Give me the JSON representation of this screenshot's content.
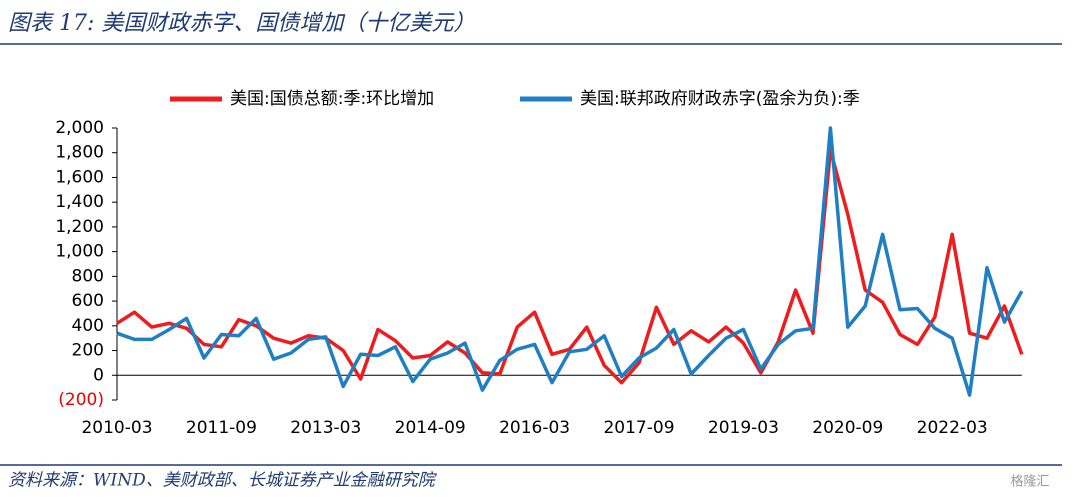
{
  "header": {
    "title": "图表 17:  美国财政赤字、国债增加（十亿美元）"
  },
  "chart_data": {
    "type": "line",
    "categories": [
      "2010-03",
      null,
      null,
      null,
      null,
      null,
      "2011-09",
      null,
      null,
      null,
      null,
      null,
      "2013-03",
      null,
      null,
      null,
      null,
      null,
      "2014-09",
      null,
      null,
      null,
      null,
      null,
      "2016-03",
      null,
      null,
      null,
      null,
      null,
      "2017-09",
      null,
      null,
      null,
      null,
      null,
      "2019-03",
      null,
      null,
      null,
      null,
      null,
      "2020-09",
      null,
      null,
      null,
      null,
      null,
      "2022-03",
      null,
      null,
      null,
      null
    ],
    "series": [
      {
        "name": "美国:国债总额:季:环比增加",
        "color": "#ee1c1c",
        "values": [
          420,
          510,
          390,
          420,
          380,
          250,
          230,
          450,
          400,
          300,
          260,
          320,
          300,
          200,
          -30,
          370,
          280,
          140,
          160,
          270,
          180,
          20,
          10,
          390,
          510,
          170,
          210,
          390,
          80,
          -60,
          100,
          550,
          250,
          360,
          270,
          390,
          260,
          20,
          270,
          690,
          340,
          1820,
          1300,
          690,
          590,
          330,
          250,
          470,
          1140,
          340,
          300,
          560,
          170
        ]
      },
      {
        "name": "美国:联邦政府财政赤字(盈余为负):季",
        "color": "#1f7fc4",
        "values": [
          340,
          290,
          290,
          370,
          460,
          140,
          330,
          320,
          460,
          130,
          180,
          290,
          310,
          -90,
          170,
          160,
          230,
          -50,
          130,
          180,
          260,
          -120,
          120,
          210,
          250,
          -60,
          190,
          210,
          320,
          -10,
          140,
          220,
          370,
          10,
          160,
          300,
          370,
          50,
          250,
          360,
          380,
          2000,
          390,
          560,
          1140,
          530,
          540,
          380,
          300,
          -160,
          870,
          430,
          680
        ]
      }
    ],
    "ylim": [
      -200,
      2000
    ],
    "yticks": [
      {
        "value": -200,
        "label": "(200)"
      },
      0,
      200,
      400,
      600,
      800,
      {
        "value": 1000,
        "label": "1,000"
      },
      {
        "value": 1200,
        "label": "1,200"
      },
      {
        "value": 1400,
        "label": "1,400"
      },
      {
        "value": 1600,
        "label": "1,600"
      },
      {
        "value": 1800,
        "label": "1,800"
      },
      {
        "value": 2000,
        "label": "2,000"
      }
    ],
    "legend": "top"
  },
  "footer": {
    "source": "资料来源：WIND、美财政部、长城证券产业金融研究院",
    "watermark": "格隆汇"
  }
}
